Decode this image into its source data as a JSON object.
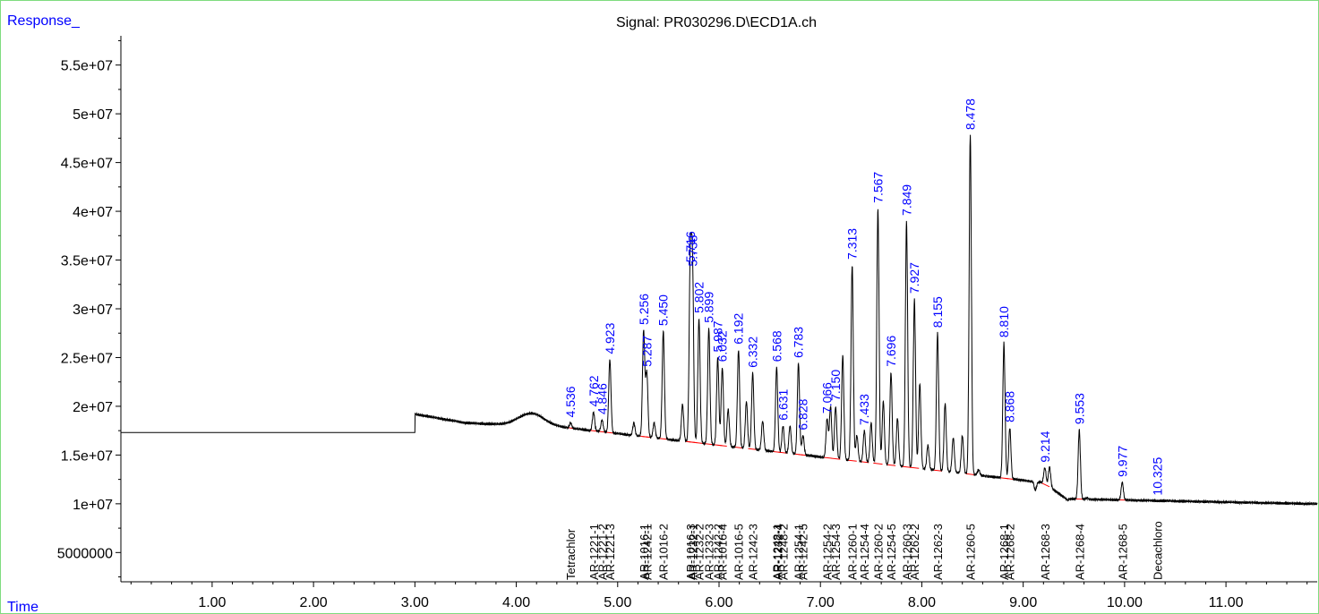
{
  "chart_data": {
    "type": "line",
    "title": "Signal: PR030296.D\\ECD1A.ch",
    "ylabel": "Response_",
    "xlabel": "Time",
    "xlim": [
      0.1,
      11.9
    ],
    "ylim": [
      2000000,
      58000000
    ],
    "x_ticks": [
      "1.00",
      "2.00",
      "3.00",
      "4.00",
      "5.00",
      "6.00",
      "7.00",
      "8.00",
      "9.00",
      "10.00",
      "11.00"
    ],
    "y_ticks": [
      "5000000",
      "1e+07",
      "1.5e+07",
      "2e+07",
      "2.5e+07",
      "3e+07",
      "3.5e+07",
      "4e+07",
      "4.5e+07",
      "5e+07",
      "5.5e+07"
    ],
    "colors": {
      "signal": "#000000",
      "peak_label": "#0000ff",
      "baseline": "#ff0000",
      "compound_label": "#000000",
      "frame": "#7fdc7f"
    },
    "baseline_start": 17300000,
    "peaks": [
      {
        "rt": 4.536,
        "label": "4.536",
        "height": 18300000
      },
      {
        "rt": 4.762,
        "label": "4.762",
        "height": 19400000
      },
      {
        "rt": 4.846,
        "label": "4.846",
        "height": 18600000
      },
      {
        "rt": 4.923,
        "label": "4.923",
        "height": 24800000
      },
      {
        "rt": 5.256,
        "label": "5.256",
        "height": 27800000
      },
      {
        "rt": 5.287,
        "label": "5.287",
        "height": 23500000
      },
      {
        "rt": 5.45,
        "label": "5.450",
        "height": 27700000
      },
      {
        "rt": 5.716,
        "label": "5.716",
        "height": 34200000
      },
      {
        "rt": 5.738,
        "label": "5.738",
        "height": 33800000
      },
      {
        "rt": 5.802,
        "label": "5.802",
        "height": 29000000
      },
      {
        "rt": 5.899,
        "label": "5.899",
        "height": 28000000
      },
      {
        "rt": 5.987,
        "label": "5.987",
        "height": 25000000
      },
      {
        "rt": 6.032,
        "label": "6.032",
        "height": 24000000
      },
      {
        "rt": 6.192,
        "label": "6.192",
        "height": 25800000
      },
      {
        "rt": 6.332,
        "label": "6.332",
        "height": 23400000
      },
      {
        "rt": 6.568,
        "label": "6.568",
        "height": 24000000
      },
      {
        "rt": 6.631,
        "label": "6.631",
        "height": 18000000
      },
      {
        "rt": 6.783,
        "label": "6.783",
        "height": 24400000
      },
      {
        "rt": 6.828,
        "label": "6.828",
        "height": 17000000
      },
      {
        "rt": 7.066,
        "label": "7.066",
        "height": 18700000
      },
      {
        "rt": 7.15,
        "label": "7.150",
        "height": 20000000
      },
      {
        "rt": 7.313,
        "label": "7.313",
        "height": 34500000
      },
      {
        "rt": 7.433,
        "label": "7.433",
        "height": 17500000
      },
      {
        "rt": 7.567,
        "label": "7.567",
        "height": 40300000
      },
      {
        "rt": 7.696,
        "label": "7.696",
        "height": 23500000
      },
      {
        "rt": 7.849,
        "label": "7.849",
        "height": 39000000
      },
      {
        "rt": 7.927,
        "label": "7.927",
        "height": 31000000
      },
      {
        "rt": 8.155,
        "label": "8.155",
        "height": 27500000
      },
      {
        "rt": 8.478,
        "label": "8.478",
        "height": 47800000
      },
      {
        "rt": 8.81,
        "label": "8.810",
        "height": 26500000
      },
      {
        "rt": 8.868,
        "label": "8.868",
        "height": 17800000
      },
      {
        "rt": 9.214,
        "label": "9.214",
        "height": 13700000
      },
      {
        "rt": 9.553,
        "label": "9.553",
        "height": 17600000
      },
      {
        "rt": 9.977,
        "label": "9.977",
        "height": 12200000
      },
      {
        "rt": 10.325,
        "label": "10.325",
        "height": 10300000
      }
    ],
    "unlabeled_peaks": [
      {
        "rt": 5.16,
        "height": 18300000
      },
      {
        "rt": 5.36,
        "height": 18300000
      },
      {
        "rt": 5.64,
        "height": 20200000
      },
      {
        "rt": 6.09,
        "height": 19700000
      },
      {
        "rt": 6.27,
        "height": 20500000
      },
      {
        "rt": 6.43,
        "height": 18500000
      },
      {
        "rt": 6.7,
        "height": 18000000
      },
      {
        "rt": 7.1,
        "height": 20000000
      },
      {
        "rt": 7.22,
        "height": 25200000
      },
      {
        "rt": 7.36,
        "height": 17000000
      },
      {
        "rt": 7.5,
        "height": 18300000
      },
      {
        "rt": 7.62,
        "height": 20500000
      },
      {
        "rt": 7.76,
        "height": 18800000
      },
      {
        "rt": 7.98,
        "height": 22300000
      },
      {
        "rt": 8.06,
        "height": 16000000
      },
      {
        "rt": 8.23,
        "height": 20300000
      },
      {
        "rt": 8.31,
        "height": 16800000
      },
      {
        "rt": 8.4,
        "height": 17000000
      },
      {
        "rt": 8.56,
        "height": 13500000
      },
      {
        "rt": 9.12,
        "height": 11400000
      },
      {
        "rt": 9.26,
        "height": 13800000
      },
      {
        "rt": 9.63,
        "height": 10600000
      }
    ],
    "compound_labels": [
      {
        "rt": 4.536,
        "label": "Tetrachlor"
      },
      {
        "rt": 4.762,
        "label": "AR-1221-1"
      },
      {
        "rt": 4.846,
        "label": "AR-1221-2"
      },
      {
        "rt": 4.923,
        "label": "AR-1221-3"
      },
      {
        "rt": 5.256,
        "label": "AR-1016-1"
      },
      {
        "rt": 5.287,
        "label": "AR-1242-1"
      },
      {
        "rt": 5.45,
        "label": "AR-1016-2"
      },
      {
        "rt": 5.716,
        "label": "AR-1016-3"
      },
      {
        "rt": 5.738,
        "label": "AR-1232-1"
      },
      {
        "rt": 5.802,
        "label": "AR-1232-2"
      },
      {
        "rt": 5.899,
        "label": "AR-1232-3"
      },
      {
        "rt": 5.987,
        "label": "AR-1242-2"
      },
      {
        "rt": 6.032,
        "label": "AR-1016-4"
      },
      {
        "rt": 6.192,
        "label": "AR-1016-5"
      },
      {
        "rt": 6.332,
        "label": "AR-1242-3"
      },
      {
        "rt": 6.568,
        "label": "AR-1248-1"
      },
      {
        "rt": 6.58,
        "label": "AR-1232-4"
      },
      {
        "rt": 6.631,
        "label": "AR-1248-2"
      },
      {
        "rt": 6.783,
        "label": "AR-1254-1"
      },
      {
        "rt": 6.828,
        "label": "AR-1242-5"
      },
      {
        "rt": 7.066,
        "label": "AR-1254-2"
      },
      {
        "rt": 7.15,
        "label": "AR-1254-3"
      },
      {
        "rt": 7.313,
        "label": "AR-1260-1"
      },
      {
        "rt": 7.433,
        "label": "AR-1254-4"
      },
      {
        "rt": 7.567,
        "label": "AR-1260-2"
      },
      {
        "rt": 7.696,
        "label": "AR-1254-5"
      },
      {
        "rt": 7.849,
        "label": "AR-1260-3"
      },
      {
        "rt": 7.927,
        "label": "AR-1262-2"
      },
      {
        "rt": 8.155,
        "label": "AR-1262-3"
      },
      {
        "rt": 8.478,
        "label": "AR-1260-5"
      },
      {
        "rt": 8.81,
        "label": "AR-1268-1"
      },
      {
        "rt": 8.868,
        "label": "AR-1268-2"
      },
      {
        "rt": 9.214,
        "label": "AR-1268-3"
      },
      {
        "rt": 9.553,
        "label": "AR-1268-4"
      },
      {
        "rt": 9.977,
        "label": "AR-1268-5"
      },
      {
        "rt": 10.325,
        "label": "Decachloro"
      }
    ]
  }
}
